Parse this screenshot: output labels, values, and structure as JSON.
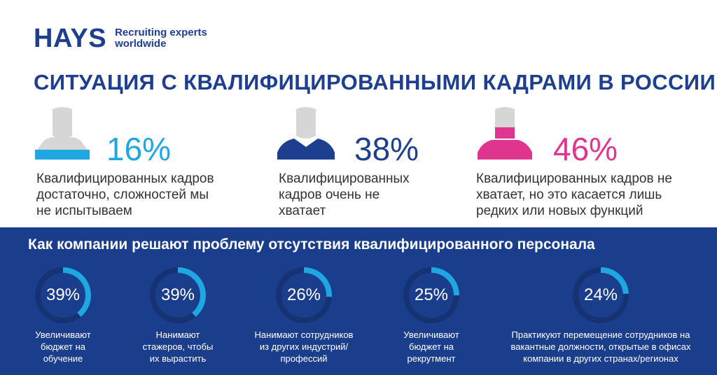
{
  "logo": {
    "brand": "HAYS",
    "tagline_1": "Recruiting experts",
    "tagline_2": "worldwide"
  },
  "title": "СИТУАЦИЯ С КВАЛИФИЦИРОВАННЫМИ КАДРАМИ В РОССИИ",
  "colors": {
    "navy": "#1e3f8f",
    "cyan": "#1ea7e1",
    "magenta": "#e0358e",
    "grey_head": "#d6d6d6",
    "band": "#1b3e8c"
  },
  "stats": [
    {
      "percent": "16%",
      "value": 16,
      "icon": "person-icon",
      "color": "#1ea7e1",
      "desc_1": "Квалифицированных кадров",
      "desc_2": "достаточно, сложностей мы",
      "desc_3": "не испытываем"
    },
    {
      "percent": "38%",
      "value": 38,
      "icon": "person-icon",
      "color": "#1e3f8f",
      "desc_1": "Квалифицированных",
      "desc_2": "кадров очень не",
      "desc_3": "хватает"
    },
    {
      "percent": "46%",
      "value": 46,
      "icon": "person-icon",
      "color": "#e0358e",
      "desc_1": "Квалифицированных кадров не",
      "desc_2": "хватает, но это касается лишь",
      "desc_3": "редких или новых функций"
    }
  ],
  "solutions_title": "Как компании решают проблему отсутствия квалифицированного персонала",
  "solutions": [
    {
      "percent": "39%",
      "value": 39,
      "line_1": "Увеличивают",
      "line_2": "бюджет на",
      "line_3": "обучение"
    },
    {
      "percent": "39%",
      "value": 39,
      "line_1": "Нанимают",
      "line_2": "стажеров, чтобы",
      "line_3": "их вырастить"
    },
    {
      "percent": "26%",
      "value": 26,
      "line_1": "Нанимают сотрудников",
      "line_2": "из других индустрий/",
      "line_3": "профессий"
    },
    {
      "percent": "25%",
      "value": 25,
      "line_1": "Увеличивают",
      "line_2": "бюджет на",
      "line_3": "рекрутмент"
    },
    {
      "percent": "24%",
      "value": 24,
      "line_1": "Практикуют перемещение сотрудников на",
      "line_2": "вакантные должности, открытые в офисах",
      "line_3": "компании в других странах/регионах"
    }
  ]
}
